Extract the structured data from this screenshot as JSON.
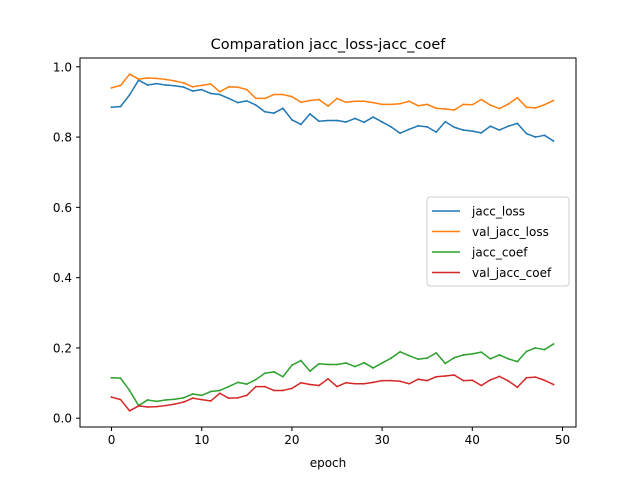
{
  "chart_data": {
    "type": "line",
    "title": "Comparation jacc_loss-jacc_coef",
    "xlabel": "epoch",
    "ylabel": "",
    "xlim": [
      -3.5,
      51.5
    ],
    "ylim": [
      -0.025,
      1.025
    ],
    "xticks": [
      0,
      10,
      20,
      30,
      40,
      50
    ],
    "yticks": [
      0.0,
      0.2,
      0.4,
      0.6,
      0.8,
      1.0
    ],
    "xtick_labels": [
      "0",
      "10",
      "20",
      "30",
      "40",
      "50"
    ],
    "ytick_labels": [
      "0.0",
      "0.2",
      "0.4",
      "0.6",
      "0.8",
      "1.0"
    ],
    "grid": false,
    "legend_position": "center-right",
    "x": [
      0,
      1,
      2,
      3,
      4,
      5,
      6,
      7,
      8,
      9,
      10,
      11,
      12,
      13,
      14,
      15,
      16,
      17,
      18,
      19,
      20,
      21,
      22,
      23,
      24,
      25,
      26,
      27,
      28,
      29,
      30,
      31,
      32,
      33,
      34,
      35,
      36,
      37,
      38,
      39,
      40,
      41,
      42,
      43,
      44,
      45,
      46,
      47,
      48,
      49
    ],
    "series": [
      {
        "name": "jacc_loss",
        "color": "#1f77b4",
        "values": [
          0.885,
          0.887,
          0.92,
          0.962,
          0.948,
          0.952,
          0.948,
          0.946,
          0.942,
          0.931,
          0.935,
          0.924,
          0.921,
          0.91,
          0.898,
          0.903,
          0.891,
          0.872,
          0.868,
          0.882,
          0.849,
          0.836,
          0.866,
          0.845,
          0.847,
          0.847,
          0.843,
          0.853,
          0.842,
          0.857,
          0.843,
          0.829,
          0.811,
          0.822,
          0.832,
          0.829,
          0.814,
          0.844,
          0.828,
          0.82,
          0.817,
          0.812,
          0.831,
          0.82,
          0.831,
          0.839,
          0.81,
          0.8,
          0.805,
          0.789
        ]
      },
      {
        "name": "val_jacc_loss",
        "color": "#ff7f0e",
        "values": [
          0.94,
          0.947,
          0.979,
          0.965,
          0.968,
          0.967,
          0.964,
          0.96,
          0.954,
          0.943,
          0.947,
          0.951,
          0.929,
          0.943,
          0.942,
          0.935,
          0.91,
          0.91,
          0.921,
          0.921,
          0.915,
          0.899,
          0.904,
          0.907,
          0.888,
          0.91,
          0.899,
          0.902,
          0.902,
          0.898,
          0.893,
          0.893,
          0.895,
          0.902,
          0.889,
          0.893,
          0.882,
          0.88,
          0.877,
          0.893,
          0.892,
          0.907,
          0.891,
          0.881,
          0.894,
          0.912,
          0.885,
          0.883,
          0.892,
          0.904
        ]
      },
      {
        "name": "jacc_coef",
        "color": "#2ca02c",
        "values": [
          0.115,
          0.114,
          0.079,
          0.036,
          0.052,
          0.048,
          0.052,
          0.054,
          0.058,
          0.069,
          0.065,
          0.076,
          0.079,
          0.09,
          0.102,
          0.097,
          0.11,
          0.128,
          0.132,
          0.118,
          0.151,
          0.164,
          0.134,
          0.155,
          0.153,
          0.153,
          0.157,
          0.147,
          0.158,
          0.143,
          0.157,
          0.171,
          0.189,
          0.178,
          0.168,
          0.171,
          0.186,
          0.156,
          0.172,
          0.18,
          0.183,
          0.188,
          0.169,
          0.18,
          0.169,
          0.161,
          0.19,
          0.2,
          0.195,
          0.211
        ]
      },
      {
        "name": "val_jacc_coef",
        "color": "#d62728",
        "values": [
          0.06,
          0.053,
          0.021,
          0.035,
          0.032,
          0.033,
          0.036,
          0.04,
          0.046,
          0.057,
          0.053,
          0.049,
          0.071,
          0.057,
          0.058,
          0.065,
          0.09,
          0.09,
          0.079,
          0.079,
          0.085,
          0.101,
          0.096,
          0.093,
          0.112,
          0.09,
          0.101,
          0.098,
          0.098,
          0.102,
          0.107,
          0.107,
          0.105,
          0.098,
          0.111,
          0.107,
          0.118,
          0.12,
          0.123,
          0.107,
          0.108,
          0.093,
          0.109,
          0.119,
          0.106,
          0.088,
          0.115,
          0.117,
          0.108,
          0.096
        ]
      }
    ]
  }
}
